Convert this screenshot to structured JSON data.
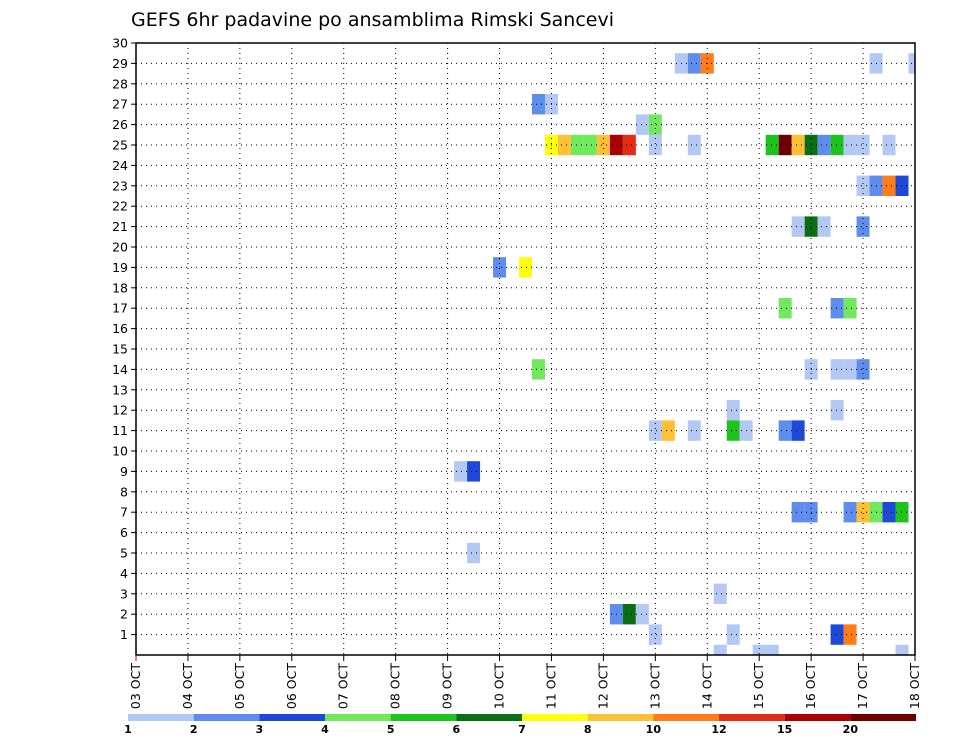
{
  "chart_data": {
    "type": "heatmap",
    "title": "GEFS 6hr padavine po ansamblima Rimski Sancevi",
    "x_tick_labels": [
      "03 OCT",
      "04 OCT",
      "05 OCT",
      "06 OCT",
      "07 OCT",
      "08 OCT",
      "09 OCT",
      "10 OCT",
      "11 OCT",
      "12 OCT",
      "13 OCT",
      "14 OCT",
      "15 OCT",
      "16 OCT",
      "17 OCT",
      "18 OCT"
    ],
    "y_tick_labels": [
      "1",
      "2",
      "3",
      "4",
      "5",
      "6",
      "7",
      "8",
      "9",
      "10",
      "11",
      "12",
      "13",
      "14",
      "15",
      "16",
      "17",
      "18",
      "19",
      "20",
      "21",
      "22",
      "23",
      "24",
      "25",
      "26",
      "27",
      "28",
      "29",
      "30"
    ],
    "x_range_days": [
      0,
      15
    ],
    "y_range": [
      0,
      30
    ],
    "time_step_hours": 6,
    "grid": "dotted",
    "colorbar": {
      "labels": [
        "1",
        "2",
        "3",
        "4",
        "5",
        "6",
        "7",
        "8",
        "10",
        "12",
        "15",
        "20"
      ],
      "colors": [
        "#b4c8f5",
        "#5f8ded",
        "#1d48d8",
        "#72e85f",
        "#1ec31e",
        "#0a6e14",
        "#ffff0c",
        "#ffc034",
        "#ff7c16",
        "#e12d14",
        "#aa0000",
        "#6c0000"
      ]
    },
    "cells": [
      {
        "member": 29,
        "day": 10.5,
        "category": 1
      },
      {
        "member": 29,
        "day": 10.75,
        "category": 2
      },
      {
        "member": 29,
        "day": 11,
        "category": 9
      },
      {
        "member": 29,
        "day": 14.25,
        "category": 1
      },
      {
        "member": 29,
        "day": 15,
        "category": 1
      },
      {
        "member": 27,
        "day": 7.75,
        "category": 2
      },
      {
        "member": 27,
        "day": 8,
        "category": 1
      },
      {
        "member": 26,
        "day": 9.75,
        "category": 1
      },
      {
        "member": 26,
        "day": 10,
        "category": 4
      },
      {
        "member": 25,
        "day": 8,
        "category": 7
      },
      {
        "member": 25,
        "day": 8.25,
        "category": 8
      },
      {
        "member": 25,
        "day": 8.5,
        "category": 4
      },
      {
        "member": 25,
        "day": 8.75,
        "category": 4
      },
      {
        "member": 25,
        "day": 9,
        "category": 8
      },
      {
        "member": 25,
        "day": 9.25,
        "category": 11
      },
      {
        "member": 25,
        "day": 9.5,
        "category": 10
      },
      {
        "member": 25,
        "day": 10,
        "category": 1
      },
      {
        "member": 25,
        "day": 10.75,
        "category": 1
      },
      {
        "member": 25,
        "day": 12.25,
        "category": 5
      },
      {
        "member": 25,
        "day": 12.5,
        "category": 12
      },
      {
        "member": 25,
        "day": 12.75,
        "category": 8
      },
      {
        "member": 25,
        "day": 13,
        "category": 6
      },
      {
        "member": 25,
        "day": 13.25,
        "category": 2
      },
      {
        "member": 25,
        "day": 13.5,
        "category": 5
      },
      {
        "member": 25,
        "day": 13.75,
        "category": 1
      },
      {
        "member": 25,
        "day": 14,
        "category": 1
      },
      {
        "member": 25,
        "day": 14.5,
        "category": 1
      },
      {
        "member": 23,
        "day": 14,
        "category": 1
      },
      {
        "member": 23,
        "day": 14.25,
        "category": 2
      },
      {
        "member": 23,
        "day": 14.5,
        "category": 9
      },
      {
        "member": 23,
        "day": 14.75,
        "category": 3
      },
      {
        "member": 21,
        "day": 12.75,
        "category": 1
      },
      {
        "member": 21,
        "day": 13,
        "category": 6
      },
      {
        "member": 21,
        "day": 13.25,
        "category": 1
      },
      {
        "member": 21,
        "day": 14,
        "category": 2
      },
      {
        "member": 19,
        "day": 7,
        "category": 2
      },
      {
        "member": 19,
        "day": 7.5,
        "category": 7
      },
      {
        "member": 17,
        "day": 12.5,
        "category": 4
      },
      {
        "member": 17,
        "day": 13.5,
        "category": 2
      },
      {
        "member": 17,
        "day": 13.75,
        "category": 4
      },
      {
        "member": 14,
        "day": 7.75,
        "category": 4
      },
      {
        "member": 14,
        "day": 13,
        "category": 1
      },
      {
        "member": 14,
        "day": 13.5,
        "category": 1
      },
      {
        "member": 14,
        "day": 13.75,
        "category": 1
      },
      {
        "member": 14,
        "day": 14,
        "category": 2
      },
      {
        "member": 12,
        "day": 11.5,
        "category": 1
      },
      {
        "member": 12,
        "day": 13.5,
        "category": 1
      },
      {
        "member": 11,
        "day": 10,
        "category": 1
      },
      {
        "member": 11,
        "day": 10.25,
        "category": 8
      },
      {
        "member": 11,
        "day": 10.75,
        "category": 1
      },
      {
        "member": 11,
        "day": 11.5,
        "category": 5
      },
      {
        "member": 11,
        "day": 11.75,
        "category": 1
      },
      {
        "member": 11,
        "day": 12.5,
        "category": 2
      },
      {
        "member": 11,
        "day": 12.75,
        "category": 3
      },
      {
        "member": 9,
        "day": 6.25,
        "category": 1
      },
      {
        "member": 9,
        "day": 6.5,
        "category": 3
      },
      {
        "member": 7,
        "day": 12.75,
        "category": 2
      },
      {
        "member": 7,
        "day": 13,
        "category": 2
      },
      {
        "member": 7,
        "day": 13.75,
        "category": 2
      },
      {
        "member": 7,
        "day": 14,
        "category": 8
      },
      {
        "member": 7,
        "day": 14.25,
        "category": 4
      },
      {
        "member": 7,
        "day": 14.5,
        "category": 3
      },
      {
        "member": 7,
        "day": 14.75,
        "category": 5
      },
      {
        "member": 5,
        "day": 6.5,
        "category": 1
      },
      {
        "member": 3,
        "day": 11.25,
        "category": 1
      },
      {
        "member": 2,
        "day": 9.25,
        "category": 2
      },
      {
        "member": 2,
        "day": 9.5,
        "category": 6
      },
      {
        "member": 2,
        "day": 9.75,
        "category": 1
      },
      {
        "member": 1,
        "day": 10,
        "category": 1
      },
      {
        "member": 1,
        "day": 11.5,
        "category": 1
      },
      {
        "member": 1,
        "day": 13.5,
        "category": 3
      },
      {
        "member": 1,
        "day": 13.75,
        "category": 9
      },
      {
        "member": 0,
        "day": 11.25,
        "category": 1
      },
      {
        "member": 0,
        "day": 12,
        "category": 1
      },
      {
        "member": 0,
        "day": 12.25,
        "category": 1
      },
      {
        "member": 0,
        "day": 14.75,
        "category": 1
      }
    ]
  }
}
